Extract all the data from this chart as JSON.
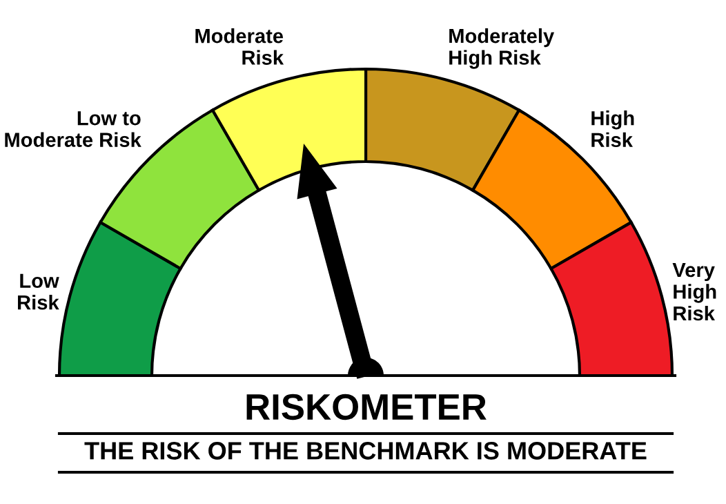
{
  "chart_data": {
    "type": "donut",
    "title": "RISKOMETER",
    "subtitle": "THE RISK OF THE BENCHMARK IS MODERATE",
    "categories": [
      "Low\nRisk",
      "Low to\nModerate Risk",
      "Moderate\nRisk",
      "Moderately\nHigh Risk",
      "High\nRisk",
      "Very\nHigh\nRisk"
    ],
    "values": [
      16.67,
      16.67,
      16.67,
      16.67,
      16.66,
      16.66
    ],
    "colors": [
      "#0f9d48",
      "#8fe33d",
      "#ffff55",
      "#c8961e",
      "#ff8c00",
      "#ee1c25"
    ],
    "needle": "Moderate\nRisk"
  }
}
